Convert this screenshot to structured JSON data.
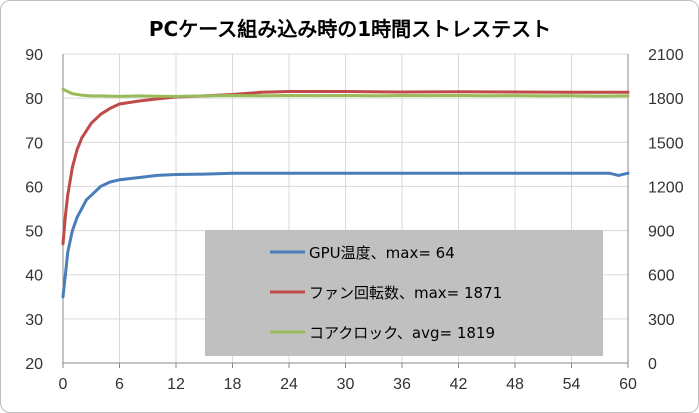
{
  "chart_data": {
    "type": "line",
    "title": "PCケース組み込み時の1時間ストレステスト",
    "xlabel": "",
    "ylabel": "",
    "y2label": "",
    "xlim": [
      0,
      60
    ],
    "ylim": [
      20,
      90
    ],
    "y2lim": [
      0,
      2100
    ],
    "x_ticks": [
      "0",
      "6",
      "12",
      "18",
      "24",
      "30",
      "36",
      "42",
      "48",
      "54",
      "60"
    ],
    "y_ticks": [
      "20",
      "30",
      "40",
      "50",
      "60",
      "70",
      "80",
      "90"
    ],
    "y2_ticks": [
      "0",
      "300",
      "600",
      "900",
      "1200",
      "1500",
      "1800",
      "2100"
    ],
    "grid": true,
    "legend_position": "bottom-right",
    "legend_background": "#c0c0c0",
    "series": [
      {
        "name": "GPU温度、max= 64",
        "axis": "left",
        "color": "#4a7ebb",
        "x": [
          0,
          0.25,
          0.5,
          1,
          1.5,
          2,
          2.5,
          3,
          4,
          5,
          6,
          8,
          10,
          12,
          15,
          18,
          24,
          30,
          36,
          42,
          48,
          54,
          58,
          59,
          60
        ],
        "y": [
          35,
          40,
          45,
          50,
          53,
          55,
          57,
          58,
          60,
          61,
          61.5,
          62,
          62.5,
          62.7,
          62.8,
          63,
          63,
          63,
          63,
          63,
          63,
          63,
          63,
          62.5,
          63
        ]
      },
      {
        "name": "ファン回転数、max= 1871",
        "axis": "right",
        "color": "#be4b48",
        "x": [
          0,
          0.25,
          0.5,
          1,
          1.5,
          2,
          3,
          4,
          5,
          6,
          8,
          10,
          12,
          15,
          18,
          21,
          24,
          30,
          36,
          42,
          48,
          54,
          60
        ],
        "y": [
          810,
          1000,
          1140,
          1330,
          1450,
          1530,
          1630,
          1690,
          1730,
          1760,
          1780,
          1795,
          1808,
          1815,
          1825,
          1840,
          1845,
          1845,
          1842,
          1843,
          1842,
          1840,
          1840
        ]
      },
      {
        "name": "コアクロック、avg= 1819",
        "axis": "right",
        "color": "#9bbb59",
        "x": [
          0,
          0.5,
          1,
          2,
          3,
          4,
          6,
          8,
          10,
          12,
          15,
          18,
          21,
          24,
          27,
          30,
          33,
          36,
          39,
          42,
          45,
          48,
          51,
          54,
          57,
          60
        ],
        "y": [
          1860,
          1845,
          1830,
          1820,
          1815,
          1815,
          1812,
          1815,
          1813,
          1812,
          1815,
          1818,
          1816,
          1818,
          1817,
          1818,
          1816,
          1818,
          1817,
          1818,
          1816,
          1817,
          1815,
          1816,
          1814,
          1815
        ]
      }
    ]
  }
}
